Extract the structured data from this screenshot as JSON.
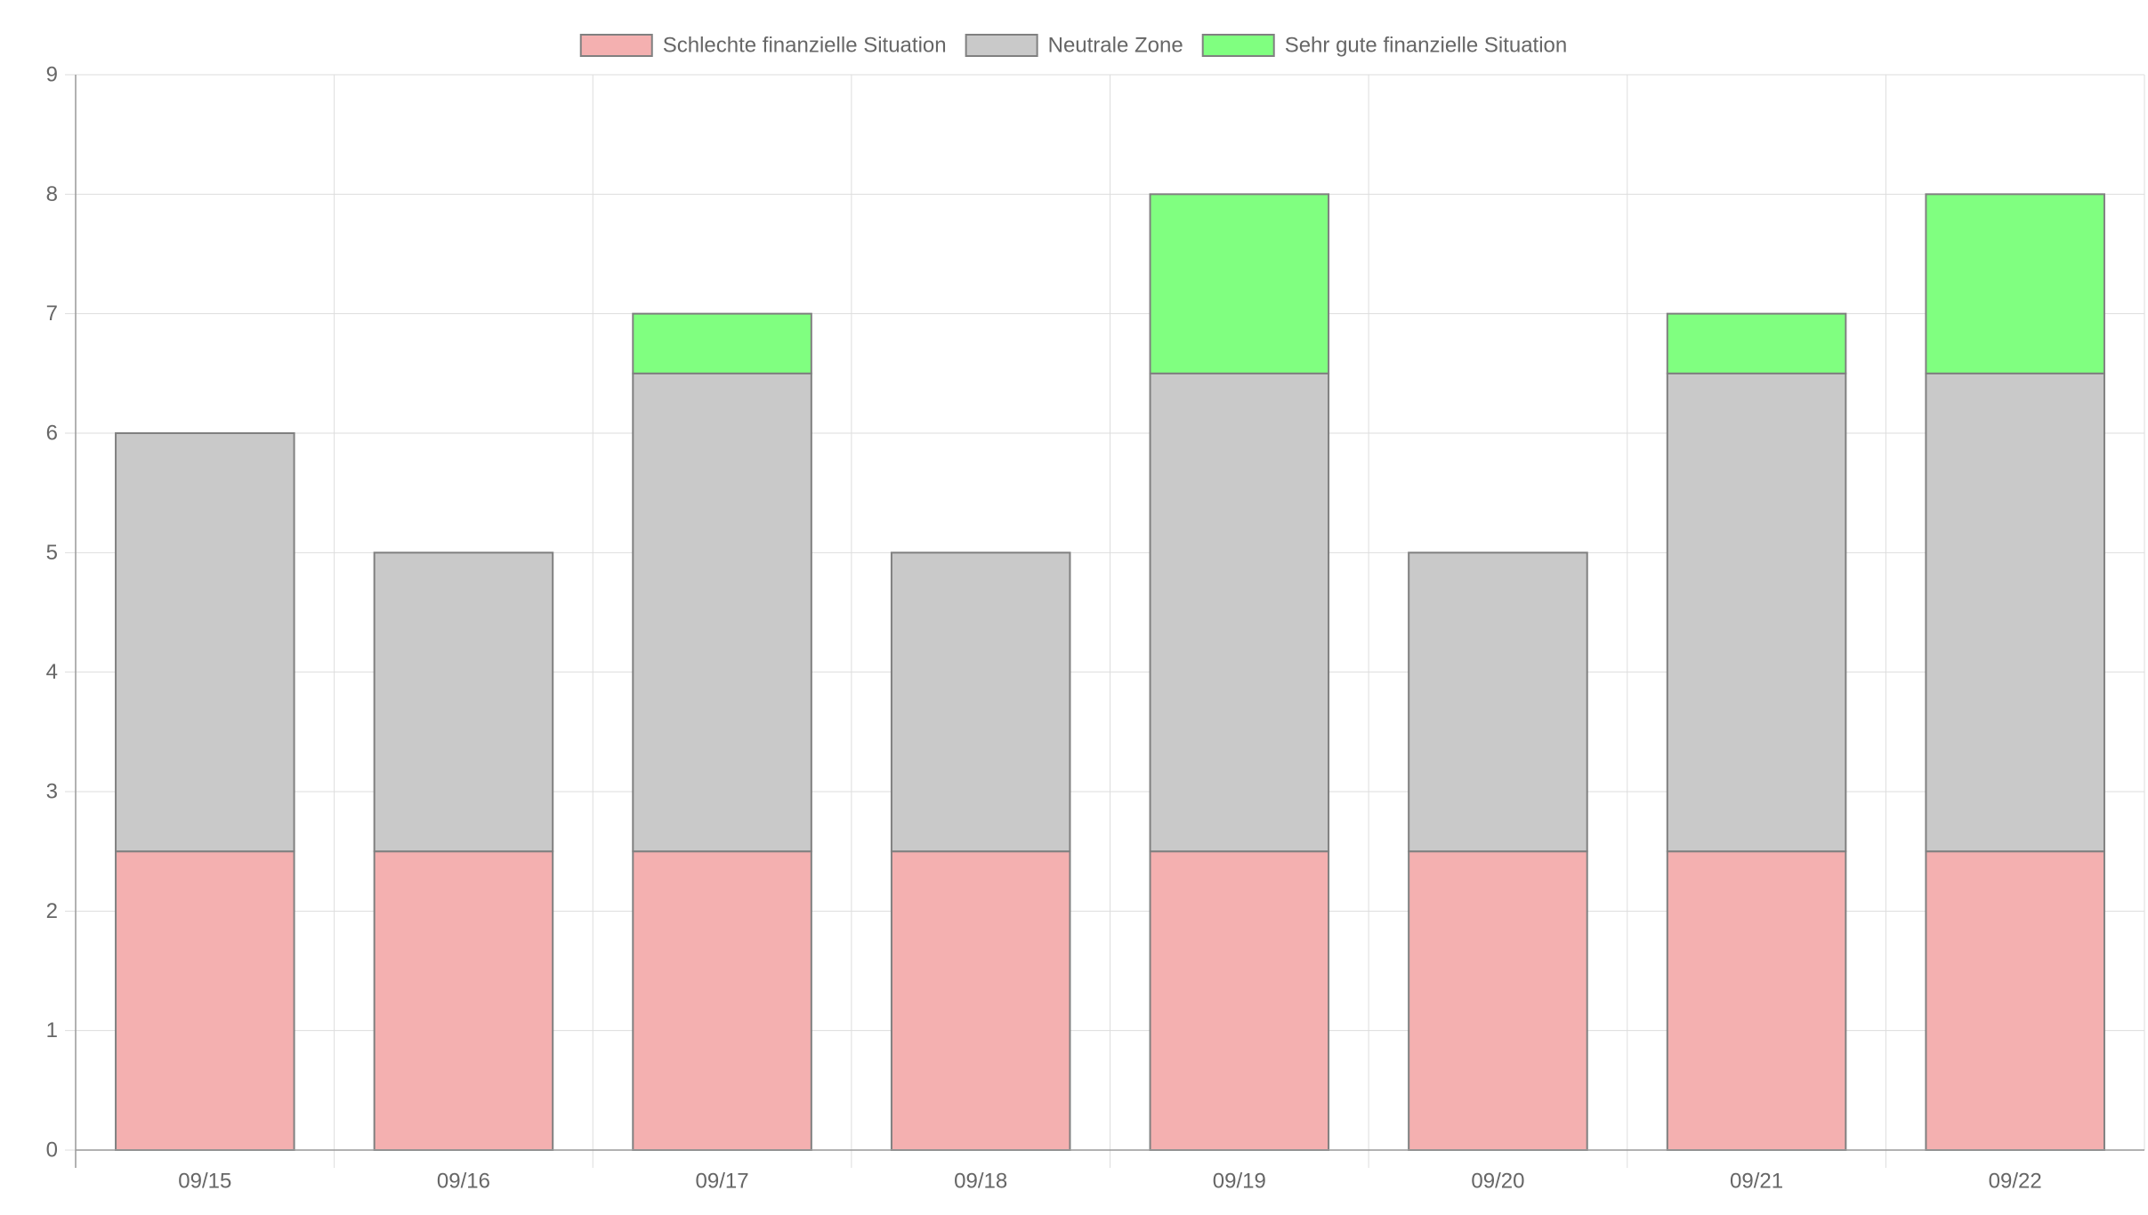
{
  "chart_data": {
    "type": "bar",
    "stacked": true,
    "categories": [
      "09/15",
      "09/16",
      "09/17",
      "09/18",
      "09/19",
      "09/20",
      "09/21",
      "09/22"
    ],
    "series": [
      {
        "name": "Schlechte finanzielle Situation",
        "color": "#f4b0b0",
        "values": [
          2.5,
          2.5,
          2.5,
          2.5,
          2.5,
          2.5,
          2.5,
          2.5
        ]
      },
      {
        "name": "Neutrale Zone",
        "color": "#c9c9c9",
        "values": [
          3.5,
          2.5,
          4,
          2.5,
          4,
          2.5,
          4,
          4
        ]
      },
      {
        "name": "Sehr gute finanzielle Situation",
        "color": "#80ff80",
        "values": [
          0,
          0,
          0.5,
          0,
          1.5,
          0,
          0.5,
          1.5
        ]
      }
    ],
    "title": "",
    "xlabel": "",
    "ylabel": "",
    "ylim": [
      0,
      9
    ],
    "yticks": [
      0,
      1,
      2,
      3,
      4,
      5,
      6,
      7,
      8,
      9
    ],
    "grid": true,
    "legend_position": "top",
    "bar_border_color": "#808080",
    "grid_color": "#dddddd",
    "axis_color": "#999999"
  }
}
